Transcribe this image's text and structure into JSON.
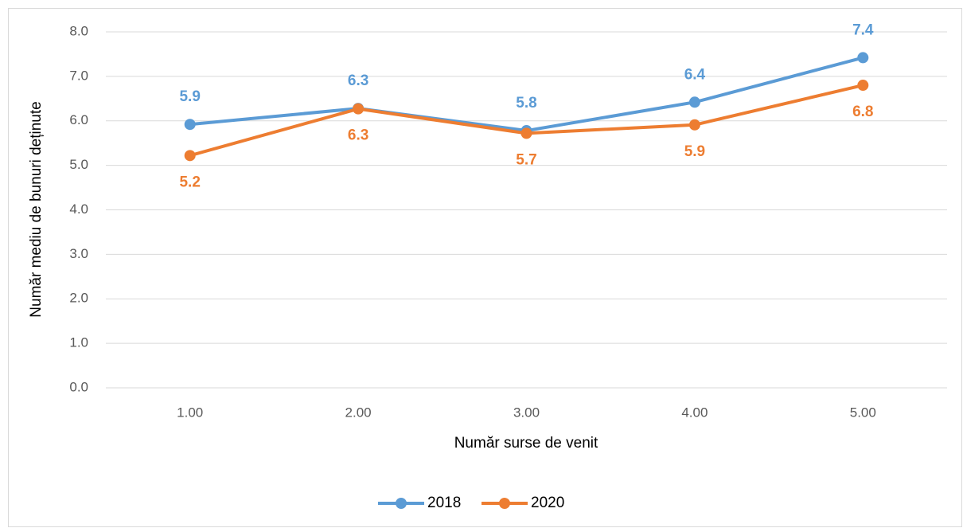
{
  "chart_data": {
    "type": "line",
    "xlabel": "Număr surse de venit",
    "ylabel": "Număr mediu de bunuri deținute",
    "categories": [
      "1.00",
      "2.00",
      "3.00",
      "4.00",
      "5.00"
    ],
    "series": [
      {
        "name": "2018",
        "color": "#5b9bd5",
        "values": [
          5.92,
          6.28,
          5.78,
          6.42,
          7.42
        ],
        "value_labels": [
          "5.9",
          "6.3",
          "5.8",
          "6.4",
          "7.4"
        ]
      },
      {
        "name": "2020",
        "color": "#ed7d31",
        "values": [
          5.22,
          6.27,
          5.72,
          5.91,
          6.8
        ],
        "value_labels": [
          "5.2",
          "6.3",
          "5.7",
          "5.9",
          "6.8"
        ]
      }
    ],
    "ylim": [
      0,
      8
    ],
    "yticks": [
      {
        "value": 0,
        "label": "0.0"
      },
      {
        "value": 1,
        "label": "1.0"
      },
      {
        "value": 2,
        "label": "2.0"
      },
      {
        "value": 3,
        "label": "3.0"
      },
      {
        "value": 4,
        "label": "4.0"
      },
      {
        "value": 5,
        "label": "5.0"
      },
      {
        "value": 6,
        "label": "6.0"
      },
      {
        "value": 7,
        "label": "7.0"
      },
      {
        "value": 8,
        "label": "8.0"
      }
    ],
    "grid": true,
    "legend": "bottom"
  }
}
